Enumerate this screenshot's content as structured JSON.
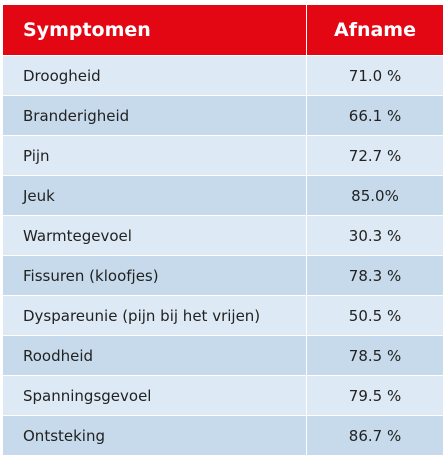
{
  "table": {
    "header": [
      "Symptomen",
      "Afname"
    ],
    "rows": [
      [
        "Droogheid",
        "71.0 %"
      ],
      [
        "Branderigheid",
        "66.1 %"
      ],
      [
        "Pijn",
        "72.7 %"
      ],
      [
        "Jeuk",
        "85.0%"
      ],
      [
        "Warmtegevoel",
        "30.3 %"
      ],
      [
        "Fissuren (kloofjes)",
        "78.3 %"
      ],
      [
        "Dyspareunie (pijn bij het vrijen)",
        "50.5 %"
      ],
      [
        "Roodheid",
        "78.5 %"
      ],
      [
        "Spanningsgevoel",
        "79.5 %"
      ],
      [
        "Ontsteking",
        "86.7 %"
      ]
    ]
  }
}
